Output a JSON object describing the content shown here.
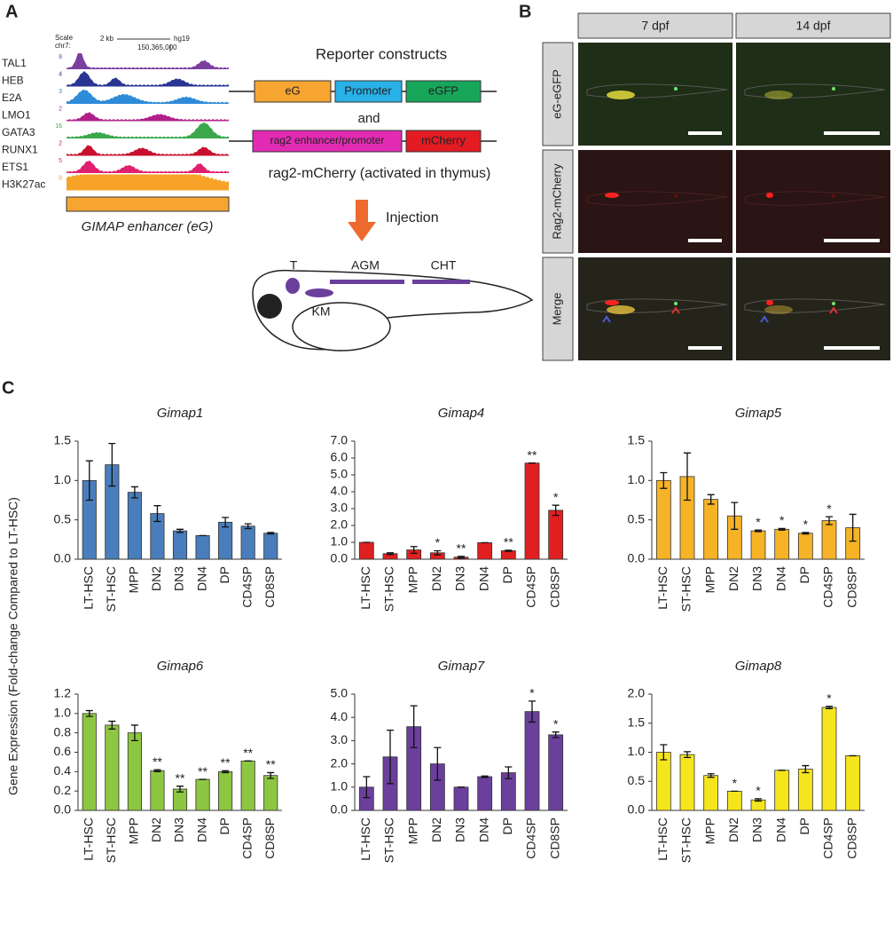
{
  "panel_a": {
    "letter": "A",
    "scale_label": "Scale",
    "chrom_label": "chr7:",
    "scale_bar": "2 kb",
    "assembly": "hg19",
    "coordinate": "150,365,000",
    "tracks": [
      {
        "name": "TAL1",
        "scale": "8"
      },
      {
        "name": "HEB",
        "scale": "4"
      },
      {
        "name": "E2A",
        "scale": "3"
      },
      {
        "name": "LMO1",
        "scale": "2"
      },
      {
        "name": "GATA3",
        "scale": "16"
      },
      {
        "name": "RUNX1",
        "scale": "2"
      },
      {
        "name": "ETS1",
        "scale": "5"
      },
      {
        "name": "H3K27ac",
        "scale": "8"
      }
    ],
    "enhancer_label": "GIMAP enhancer (eG)",
    "construct_title": "Reporter constructs",
    "construct1": [
      "eG",
      "Promoter",
      "eGFP"
    ],
    "and_label": "and",
    "construct2": [
      "rag2 enhancer/promoter",
      "mCherry"
    ],
    "caption": "rag2-mCherry (activated in thymus)",
    "injection": "Injection",
    "fish_labels": [
      "T",
      "AGM",
      "CHT",
      "KM"
    ]
  },
  "panel_b": {
    "letter": "B",
    "columns": [
      "7 dpf",
      "14 dpf"
    ],
    "rows": [
      "eG-eGFP",
      "Rag2-mCherry",
      "Merge"
    ]
  },
  "panel_c": {
    "letter": "C",
    "y_label": "Gene Expression (Fold-change Compared to LT-HSC)"
  },
  "chart_data": [
    {
      "type": "bar",
      "title": "Gimap1",
      "color": "#4a7dbb",
      "categories": [
        "LT-HSC",
        "ST-HSC",
        "MPP",
        "DN2",
        "DN3",
        "DN4",
        "DP",
        "CD4SP",
        "CD8SP"
      ],
      "values": [
        1.0,
        1.2,
        0.85,
        0.58,
        0.36,
        0.3,
        0.47,
        0.42,
        0.33
      ],
      "errors": [
        0.25,
        0.27,
        0.07,
        0.1,
        0.02,
        0,
        0.06,
        0.03,
        0.01
      ],
      "significance": [
        null,
        null,
        null,
        null,
        null,
        null,
        null,
        null,
        null
      ],
      "ylim": [
        0,
        1.5
      ],
      "yticks": [
        {
          "value": 0,
          "label": "0.0"
        },
        0.5,
        {
          "value": 1,
          "label": "1.0"
        },
        1.5
      ]
    },
    {
      "type": "bar",
      "title": "Gimap4",
      "color": "#e02020",
      "categories": [
        "LT-HSC",
        "ST-HSC",
        "MPP",
        "DN2",
        "DN3",
        "DN4",
        "DP",
        "CD4SP",
        "CD8SP"
      ],
      "values": [
        1.0,
        0.33,
        0.55,
        0.38,
        0.12,
        0.98,
        0.5,
        5.7,
        2.9
      ],
      "errors": [
        0,
        0.05,
        0.2,
        0.12,
        0.05,
        0,
        0.03,
        0,
        0.3
      ],
      "significance": [
        null,
        null,
        null,
        "*",
        "**",
        null,
        "**",
        "**",
        "*"
      ],
      "ylim": [
        0,
        7
      ],
      "yticks": [
        {
          "value": 0,
          "label": "0.0"
        },
        {
          "value": 1,
          "label": "1.0"
        },
        {
          "value": 2,
          "label": "2.0"
        },
        {
          "value": 3,
          "label": "3.0"
        },
        {
          "value": 4,
          "label": "4.0"
        },
        {
          "value": 5,
          "label": "5.0"
        },
        {
          "value": 6,
          "label": "6.0"
        },
        {
          "value": 7,
          "label": "7.0"
        }
      ]
    },
    {
      "type": "bar",
      "title": "Gimap5",
      "color": "#f6b326",
      "categories": [
        "LT-HSC",
        "ST-HSC",
        "MPP",
        "DN2",
        "DN3",
        "DN4",
        "DP",
        "CD4SP",
        "CD8SP"
      ],
      "values": [
        1.0,
        1.05,
        0.76,
        0.55,
        0.36,
        0.38,
        0.33,
        0.49,
        0.4
      ],
      "errors": [
        0.1,
        0.3,
        0.06,
        0.17,
        0.01,
        0.01,
        0.01,
        0.05,
        0.17
      ],
      "significance": [
        null,
        null,
        null,
        null,
        "*",
        "*",
        "*",
        "*",
        null
      ],
      "ylim": [
        0,
        1.5
      ],
      "yticks": [
        {
          "value": 0,
          "label": "0.0"
        },
        0.5,
        {
          "value": 1,
          "label": "1.0"
        },
        1.5
      ]
    },
    {
      "type": "bar",
      "title": "Gimap6",
      "color": "#8dc641",
      "categories": [
        "LT-HSC",
        "ST-HSC",
        "MPP",
        "DN2",
        "DN3",
        "DN4",
        "DP",
        "CD4SP",
        "CD8SP"
      ],
      "values": [
        1.0,
        0.88,
        0.8,
        0.41,
        0.22,
        0.32,
        0.4,
        0.51,
        0.36
      ],
      "errors": [
        0.03,
        0.04,
        0.08,
        0.01,
        0.03,
        0,
        0.01,
        0,
        0.03
      ],
      "significance": [
        null,
        null,
        null,
        "**",
        "**",
        "**",
        "**",
        "**",
        "**"
      ],
      "ylim": [
        0,
        1.2
      ],
      "yticks": [
        {
          "value": 0,
          "label": "0.0"
        },
        0.2,
        0.4,
        0.6,
        0.8,
        {
          "value": 1,
          "label": "1.0"
        },
        1.2
      ]
    },
    {
      "type": "bar",
      "title": "Gimap7",
      "color": "#6b3f9c",
      "categories": [
        "LT-HSC",
        "ST-HSC",
        "MPP",
        "DN2",
        "DN3",
        "DN4",
        "DP",
        "CD4SP",
        "CD8SP"
      ],
      "values": [
        1.0,
        2.3,
        3.6,
        2.0,
        1.0,
        1.45,
        1.62,
        4.25,
        3.25
      ],
      "errors": [
        0.45,
        1.15,
        0.9,
        0.7,
        0,
        0.03,
        0.25,
        0.45,
        0.12
      ],
      "significance": [
        null,
        null,
        null,
        null,
        null,
        null,
        null,
        "*",
        "*"
      ],
      "ylim": [
        0,
        5
      ],
      "yticks": [
        {
          "value": 0,
          "label": "0.0"
        },
        {
          "value": 1,
          "label": "1.0"
        },
        {
          "value": 2,
          "label": "2.0"
        },
        {
          "value": 3,
          "label": "3.0"
        },
        {
          "value": 4,
          "label": "4.0"
        },
        {
          "value": 5,
          "label": "5.0"
        }
      ]
    },
    {
      "type": "bar",
      "title": "Gimap8",
      "color": "#f5e51c",
      "categories": [
        "LT-HSC",
        "ST-HSC",
        "MPP",
        "DN2",
        "DN3",
        "DN4",
        "DP",
        "CD4SP",
        "CD8SP"
      ],
      "values": [
        1.0,
        0.96,
        0.6,
        0.33,
        0.18,
        0.69,
        0.71,
        1.77,
        0.94
      ],
      "errors": [
        0.13,
        0.05,
        0.03,
        0,
        0.02,
        0,
        0.06,
        0.02,
        0
      ],
      "significance": [
        null,
        null,
        null,
        "*",
        "*",
        null,
        null,
        "*",
        null
      ],
      "ylim": [
        0,
        2
      ],
      "yticks": [
        {
          "value": 0,
          "label": "0.0"
        },
        0.5,
        {
          "value": 1,
          "label": "1.0"
        },
        1.5,
        {
          "value": 2,
          "label": "2.0"
        }
      ]
    }
  ]
}
